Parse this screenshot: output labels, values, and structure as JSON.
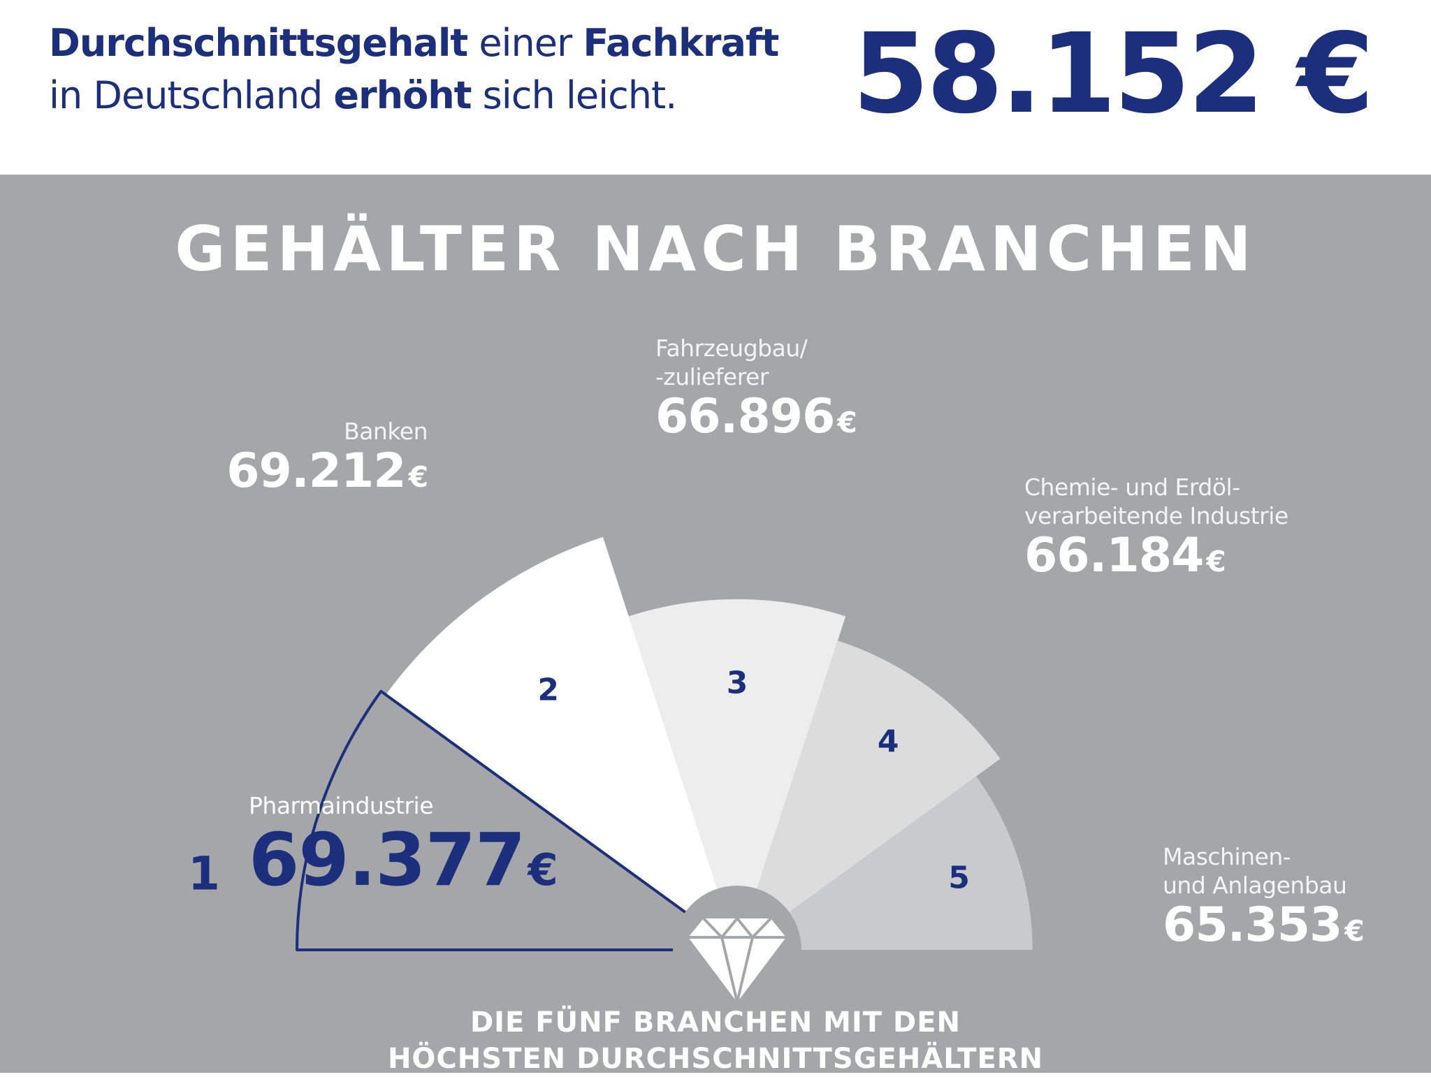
{
  "header": {
    "line1": [
      {
        "text": "Durchschnittsgehalt",
        "bold": true
      },
      {
        "text": " einer ",
        "bold": false
      },
      {
        "text": "Fachkraft",
        "bold": true
      }
    ],
    "line2": [
      {
        "text": "in Deutschland ",
        "bold": false
      },
      {
        "text": "erhöht",
        "bold": true
      },
      {
        "text": " sich leicht.",
        "bold": false
      }
    ],
    "average_salary": "58.152 €"
  },
  "chart_data": {
    "type": "pie",
    "title": "GEHÄLTER NACH BRANCHEN",
    "subtitle": [
      "DIE FÜNF BRANCHEN MIT DEN",
      "HÖCHSTEN DURCHSCHNITTSGEHÄLTERN"
    ],
    "unit": "€",
    "items": [
      {
        "rank": "1",
        "name": [
          "Pharmaindustrie"
        ],
        "value": 69377,
        "value_label": "69.377",
        "highlight": true
      },
      {
        "rank": "2",
        "name": [
          "Banken"
        ],
        "value": 69212,
        "value_label": "69.212"
      },
      {
        "rank": "3",
        "name": [
          "Fahrzeugbau/",
          "-zulieferer"
        ],
        "value": 66896,
        "value_label": "66.896"
      },
      {
        "rank": "4",
        "name": [
          "Chemie- und Erdöl-",
          "verarbeitende Industrie"
        ],
        "value": 66184,
        "value_label": "66.184"
      },
      {
        "rank": "5",
        "name": [
          "Maschinen-",
          "und Anlagenbau"
        ],
        "value": 65353,
        "value_label": "65.353"
      }
    ]
  },
  "colors": {
    "accent": "#1c2f7c",
    "panel": "#a5a6a8",
    "slices": [
      "#a5a6a8",
      "#ffffff",
      "#ededee",
      "#dcdcdd",
      "#c9cacc"
    ]
  },
  "icons": {
    "center": "diamond-icon"
  }
}
